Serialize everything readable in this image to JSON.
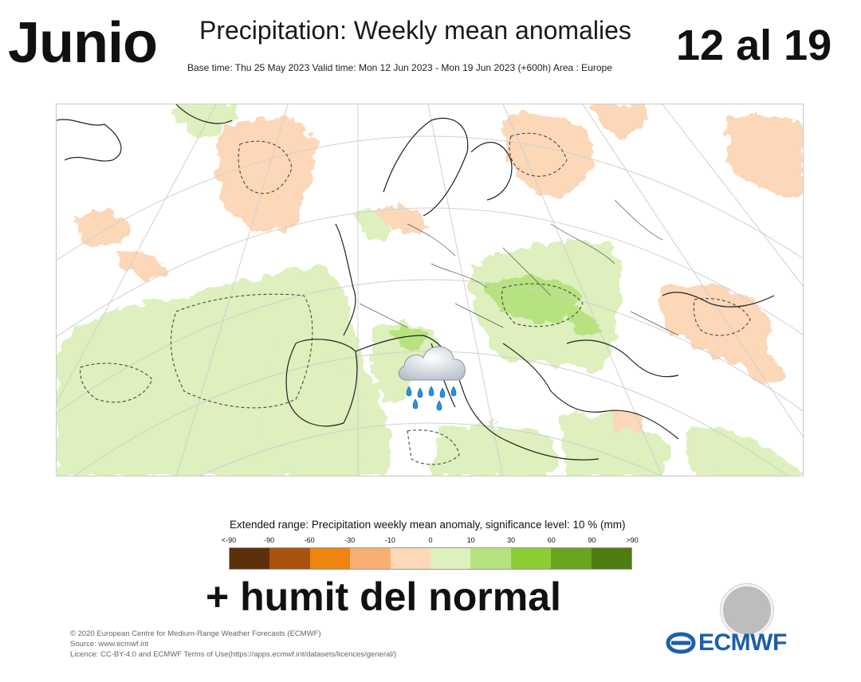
{
  "overlay": {
    "month": "Junio",
    "dates": "12 al 19",
    "caption": "+ humit del normal"
  },
  "map": {
    "title": "Precipitation: Weekly mean anomalies",
    "subtitle": "Base time: Thu 25 May 2023 Valid time: Mon 12 Jun 2023 - Mon 19 Jun 2023 (+600h) Area : Europe",
    "region": "Europe",
    "emoji_icon": "cloud-with-rain-icon"
  },
  "legend": {
    "title": "Extended range: Precipitation weekly mean anomaly, significance level: 10 % (mm)",
    "ticks": [
      "<-90",
      "-90",
      "-60",
      "-30",
      "-10",
      "0",
      "10",
      "30",
      "60",
      "90",
      ">90"
    ],
    "colors": [
      "#5c3008",
      "#a9530f",
      "#f08410",
      "#f7b071",
      "#fcd7b8",
      "#ddf0bd",
      "#b6e37f",
      "#8ccc35",
      "#6aa51e",
      "#4f7d10"
    ]
  },
  "credits": {
    "line1": "© 2020 European Centre for Medium-Range Weather Forecasts (ECMWF)",
    "line2": "Source: www.ecmwf.int",
    "line3": "Licence: CC-BY-4.0 and ECMWF Terms of Use(https://apps.ecmwf.int/datasets/licences/general/)"
  },
  "logo": {
    "text": "ECMWF",
    "color": "#1d5fa8"
  }
}
